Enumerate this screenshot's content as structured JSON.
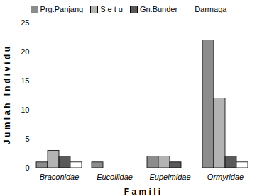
{
  "chart_data": {
    "type": "bar",
    "categories": [
      "Braconidae",
      "Eucoilidae",
      "Eupelmidae",
      "Ormyridae"
    ],
    "series": [
      {
        "name": "Prg.Panjang",
        "color": "#8c8c8c",
        "values": [
          1,
          1,
          2,
          22
        ]
      },
      {
        "name": "S e t u",
        "color": "#b3b3b3",
        "values": [
          3,
          0,
          2,
          12
        ]
      },
      {
        "name": "Gn.Bunder",
        "color": "#595959",
        "values": [
          2,
          0,
          1,
          2
        ]
      },
      {
        "name": "Darmaga",
        "color": "#ffffff",
        "values": [
          1,
          0,
          0,
          1
        ]
      }
    ],
    "x_label": "F a m i l i",
    "y_label": "J u m l a h   I n d i v i d u",
    "ylim": [
      0,
      25
    ],
    "yticks": [
      0,
      5,
      10,
      15,
      20,
      25
    ],
    "legend": "top"
  }
}
